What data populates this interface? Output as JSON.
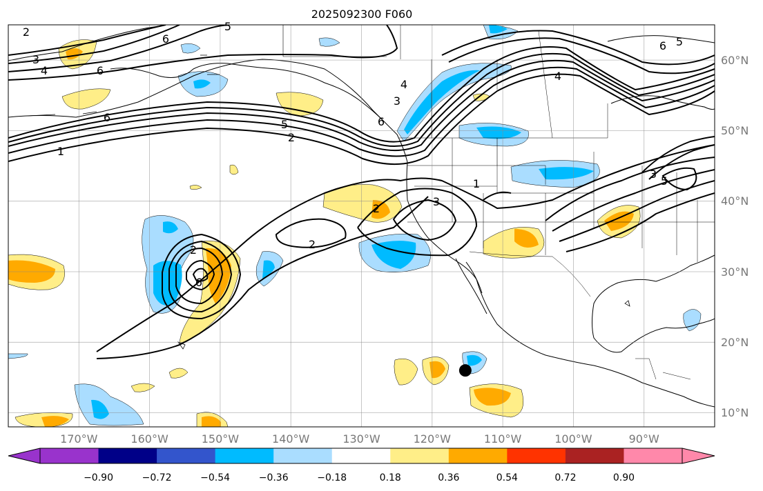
{
  "title": "2025092300 F060",
  "map": {
    "projection": "PlateCarree",
    "lon_range": [
      -180,
      -80
    ],
    "lat_range": [
      8,
      65
    ],
    "gridlines": true,
    "lon_labels": [
      "170°W",
      "160°W",
      "150°W",
      "140°W",
      "130°W",
      "120°W",
      "110°W",
      "100°W",
      "90°W"
    ],
    "lat_labels": [
      "60°N",
      "50°N",
      "40°N",
      "30°N",
      "20°N",
      "10°N"
    ],
    "contour_labels": [
      "2",
      "3",
      "4",
      "6",
      "6",
      "5",
      "6",
      "1",
      "5",
      "2",
      "6",
      "3",
      "4",
      "1",
      "3",
      "2",
      "2",
      "2",
      "6",
      "3",
      "5",
      "6",
      "5",
      "4"
    ],
    "marker": {
      "label": "",
      "lon": -115.3,
      "lat": 16.0
    }
  },
  "colorbar": {
    "colors": [
      "#9933cc",
      "#000088",
      "#3355cc",
      "#00bbff",
      "#aaddff",
      "#ffffff",
      "#ffee88",
      "#ffaa00",
      "#ff3300",
      "#aa2222",
      "#ff88aa"
    ],
    "tick_labels": [
      "−0.90",
      "−0.72",
      "−0.54",
      "−0.36",
      "−0.18",
      "0.18",
      "0.36",
      "0.54",
      "0.72",
      "0.90"
    ],
    "extend": "both"
  }
}
